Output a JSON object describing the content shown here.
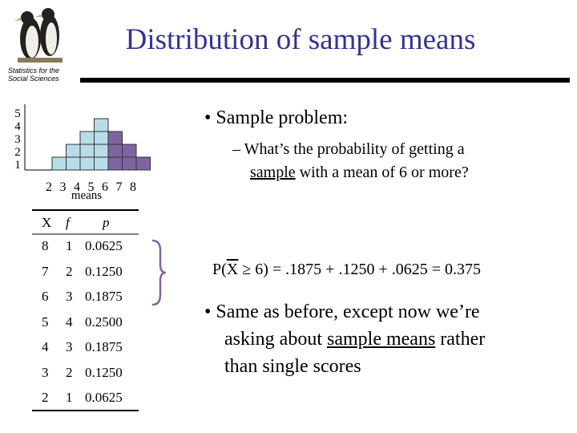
{
  "header": {
    "title": "Distribution of sample means",
    "logo_caption": [
      "Statistics for the",
      "Social Sciences"
    ]
  },
  "histogram": {
    "y_labels": [
      "5",
      "4",
      "3",
      "2",
      "1"
    ],
    "x_labels": [
      "2",
      "3",
      "4",
      "5",
      "6",
      "7",
      "8"
    ],
    "x_title": "means",
    "counts": [
      1,
      2,
      3,
      4,
      3,
      2,
      1
    ],
    "highlighted": [
      false,
      false,
      false,
      false,
      true,
      true,
      true
    ],
    "color": "#b7dde8",
    "highlight_color": "#8064a2"
  },
  "table": {
    "header": [
      "X",
      "f",
      "p"
    ],
    "rows": [
      [
        "8",
        "1",
        "0.0625"
      ],
      [
        "7",
        "2",
        "0.1250"
      ],
      [
        "6",
        "3",
        "0.1875"
      ],
      [
        "5",
        "4",
        "0.2500"
      ],
      [
        "4",
        "3",
        "0.1875"
      ],
      [
        "3",
        "2",
        "0.1250"
      ],
      [
        "2",
        "1",
        "0.0625"
      ]
    ]
  },
  "bullets": {
    "first": "Sample problem:",
    "sub": [
      "What’s the probability of getting a",
      "sample",
      " with a mean of 6 or more?"
    ],
    "equation": [
      "P(",
      "X",
      " ",
      "≥",
      " 6) = .1875 + .1250 + .0625 = 0.375"
    ],
    "second": [
      "Same as before, except now we’re",
      "asking about ",
      "sample means",
      " rather",
      "than single scores"
    ]
  }
}
